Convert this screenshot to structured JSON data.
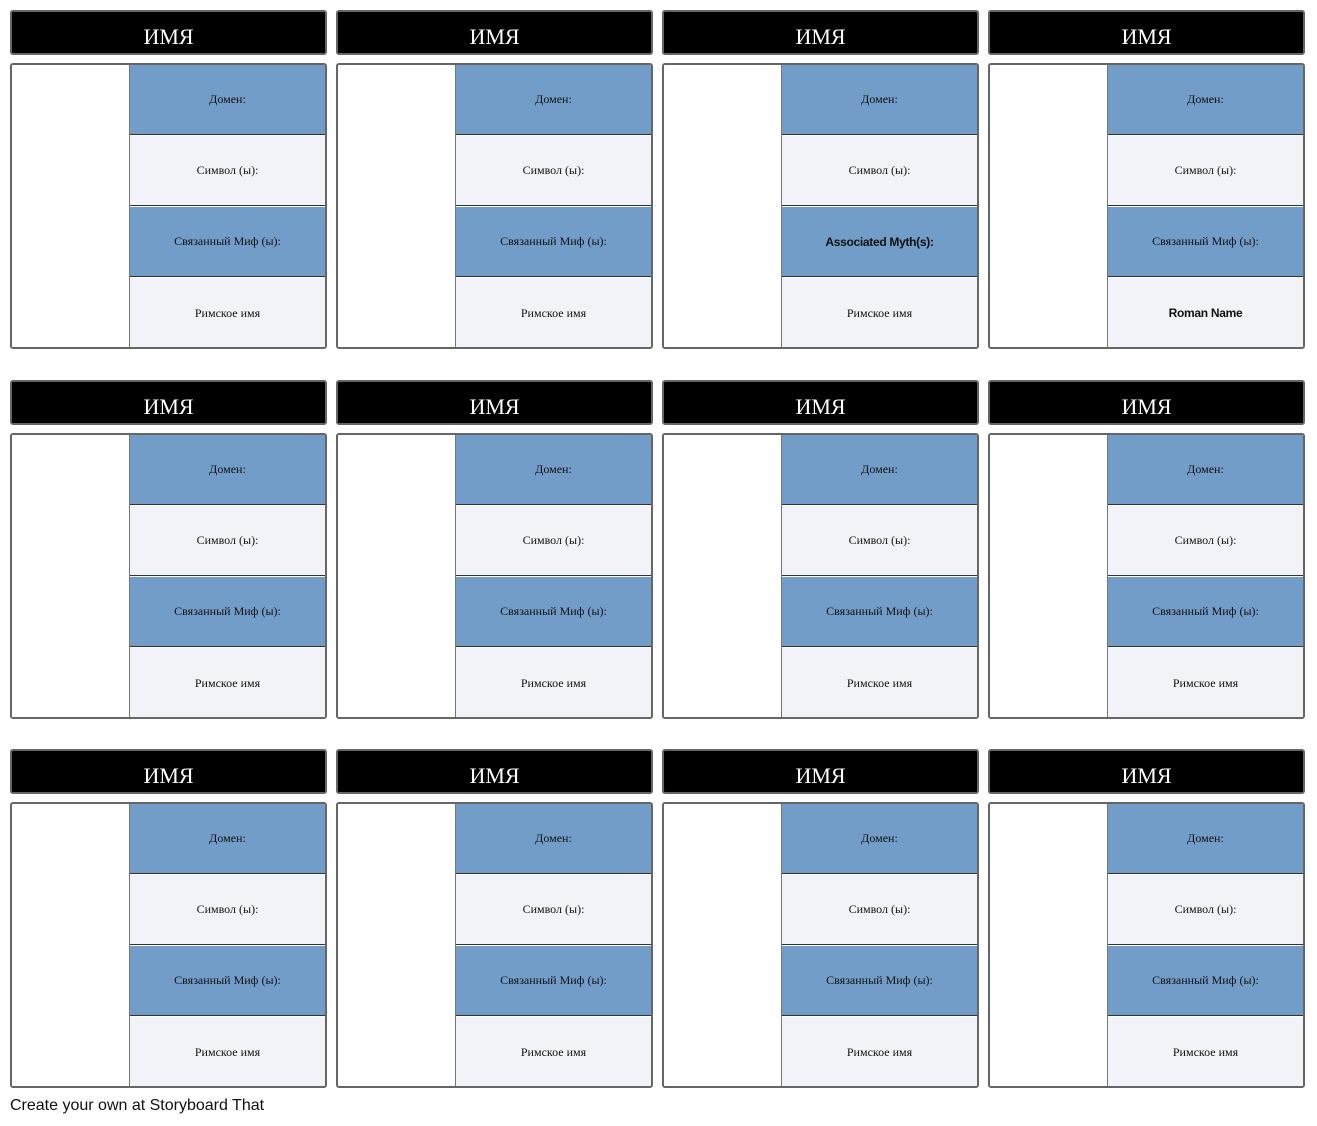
{
  "colors": {
    "header": "#000000",
    "blue_cell": "#729dc8",
    "light_cell": "#f2f3f8"
  },
  "cards": [
    {
      "title": "ИМЯ",
      "fields": [
        "Домен:",
        "Символ (ы):",
        "Связанный Миф (ы):",
        "Римское имя"
      ]
    },
    {
      "title": "ИМЯ",
      "fields": [
        "Домен:",
        "Символ (ы):",
        "Связанный Миф (ы):",
        "Римское имя"
      ]
    },
    {
      "title": "ИМЯ",
      "fields": [
        "Домен:",
        "Символ (ы):",
        "Associated Myth(s):",
        "Римское имя"
      ]
    },
    {
      "title": "ИМЯ",
      "fields": [
        "Домен:",
        "Символ (ы):",
        "Связанный Миф (ы):",
        "Roman Name"
      ]
    },
    {
      "title": "ИМЯ",
      "fields": [
        "Домен:",
        "Символ (ы):",
        "Связанный Миф (ы):",
        "Римское имя"
      ]
    },
    {
      "title": "ИМЯ",
      "fields": [
        "Домен:",
        "Символ (ы):",
        "Связанный Миф (ы):",
        "Римское имя"
      ]
    },
    {
      "title": "ИМЯ",
      "fields": [
        "Домен:",
        "Символ (ы):",
        "Связанный Миф (ы):",
        "Римское имя"
      ]
    },
    {
      "title": "ИМЯ",
      "fields": [
        "Домен:",
        "Символ (ы):",
        "Связанный Миф (ы):",
        "Римское имя"
      ]
    },
    {
      "title": "ИМЯ",
      "fields": [
        "Домен:",
        "Символ (ы):",
        "Связанный Миф (ы):",
        "Римское имя"
      ]
    },
    {
      "title": "ИМЯ",
      "fields": [
        "Домен:",
        "Символ (ы):",
        "Связанный Миф (ы):",
        "Римское имя"
      ]
    },
    {
      "title": "ИМЯ",
      "fields": [
        "Домен:",
        "Символ (ы):",
        "Связанный Миф (ы):",
        "Римское имя"
      ]
    },
    {
      "title": "ИМЯ",
      "fields": [
        "Домен:",
        "Символ (ы):",
        "Связанный Миф (ы):",
        "Римское имя"
      ]
    }
  ],
  "footer": "Create your own at Storyboard That"
}
